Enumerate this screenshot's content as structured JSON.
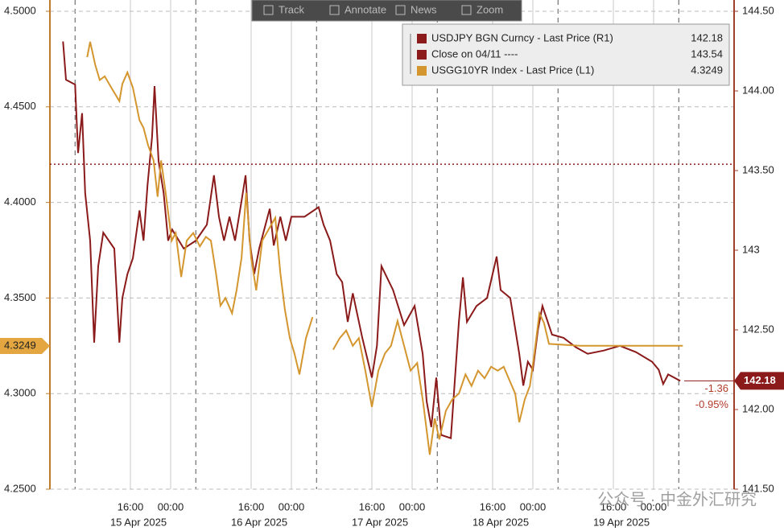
{
  "chart_data": {
    "type": "line",
    "toolbar": [
      "Track",
      "Annotate",
      "News",
      "Zoom"
    ],
    "xlim": [
      0,
      136
    ],
    "xticks": [
      {
        "value": 16,
        "label": "16:00"
      },
      {
        "value": 24,
        "label": "00:00"
      },
      {
        "value": 40,
        "label": "16:00"
      },
      {
        "value": 48,
        "label": "00:00"
      },
      {
        "value": 64,
        "label": "16:00"
      },
      {
        "value": 72,
        "label": "00:00"
      },
      {
        "value": 88,
        "label": "16:00"
      },
      {
        "value": 96,
        "label": "00:00"
      },
      {
        "value": 112,
        "label": "16:00"
      },
      {
        "value": 120,
        "label": "00:00"
      }
    ],
    "x_date_labels": [
      {
        "value": 16,
        "label": "15 Apr 2025"
      },
      {
        "value": 40,
        "label": "16 Apr 2025"
      },
      {
        "value": 64,
        "label": "17 Apr 2025"
      },
      {
        "value": 88,
        "label": "18 Apr 2025"
      },
      {
        "value": 112,
        "label": "19 Apr 2025"
      }
    ],
    "session_lines": [
      5,
      29,
      53,
      77,
      101,
      125
    ],
    "ylim": [
      4.25,
      4.5
    ],
    "yticks": [
      {
        "value": 4.25,
        "label": "4.2500"
      },
      {
        "value": 4.3,
        "label": "4.3000"
      },
      {
        "value": 4.35,
        "label": "4.3500"
      },
      {
        "value": 4.4,
        "label": "4.4000"
      },
      {
        "value": 4.45,
        "label": "4.4500"
      },
      {
        "value": 4.5,
        "label": "4.5000"
      }
    ],
    "y2lim": [
      141.5,
      144.5
    ],
    "y2ticks": [
      {
        "value": 141.5,
        "label": "141.50"
      },
      {
        "value": 142,
        "label": "142.00"
      },
      {
        "value": 142.5,
        "label": "142.50"
      },
      143,
      {
        "value": 143.5,
        "label": "143.50"
      },
      {
        "value": 144,
        "label": "144.00"
      },
      {
        "value": 144.5,
        "label": "144.50"
      }
    ],
    "grid": true,
    "series": [
      {
        "name": "USDJPY BGN Curncy - Last Price (R1)",
        "color": "#8b1a1a",
        "axis": "y2",
        "last": 142.18,
        "x": [
          2.6,
          3.2,
          5.0,
          5.6,
          6.4,
          7.0,
          8.0,
          8.8,
          9.6,
          10.6,
          12.8,
          13.8,
          14.4,
          15.4,
          16.5,
          17.8,
          18.6,
          19.4,
          20.3,
          20.8,
          21.6,
          22.6,
          23.5,
          24.3,
          26.6,
          29.0,
          31.2,
          32.6,
          33.6,
          34.6,
          35.7,
          36.8,
          38.1,
          38.9,
          39.7,
          40.6,
          41.6,
          43.7,
          44.5,
          45.8,
          46.9,
          48.0,
          50.6,
          53.4,
          54.4,
          55.7,
          57.0,
          58.1,
          59.2,
          60.2,
          62.1,
          64.0,
          65.0,
          65.9,
          68.2,
          70.4,
          72.5,
          74.1,
          74.9,
          75.8,
          76.8,
          77.8,
          79.7,
          81.3,
          82.1,
          82.9,
          84.8,
          86.9,
          88.8,
          89.6,
          91.5,
          93.3,
          94.1,
          95.0,
          96.0,
          97.0,
          97.9,
          99.8,
          102.1,
          104.6,
          106.9,
          110.1,
          113.3,
          116.5,
          119.7,
          121.0,
          121.9,
          122.9,
          125.3
        ],
        "values": [
          144.31,
          144.07,
          144.04,
          143.61,
          143.86,
          143.36,
          143.06,
          142.42,
          142.9,
          143.11,
          143.01,
          142.42,
          142.7,
          142.85,
          142.95,
          143.25,
          143.06,
          143.41,
          143.71,
          144.03,
          143.56,
          143.36,
          143.06,
          143.13,
          143.01,
          143.06,
          143.16,
          143.47,
          143.21,
          143.06,
          143.21,
          143.06,
          143.31,
          143.47,
          143.06,
          142.85,
          143.01,
          143.26,
          143.03,
          143.21,
          143.06,
          143.21,
          143.21,
          143.27,
          143.16,
          143.06,
          142.85,
          142.8,
          142.55,
          142.73,
          142.45,
          142.2,
          142.4,
          142.9,
          142.75,
          142.53,
          142.65,
          142.35,
          142.05,
          141.89,
          142.2,
          141.84,
          141.82,
          142.55,
          142.83,
          142.55,
          142.65,
          142.7,
          142.96,
          142.75,
          142.7,
          142.35,
          142.15,
          142.3,
          142.25,
          142.5,
          142.65,
          142.47,
          142.45,
          142.39,
          142.35,
          142.37,
          142.4,
          142.36,
          142.3,
          142.25,
          142.16,
          142.22,
          142.18
        ]
      },
      {
        "name": "Close on 04/11 ----",
        "color": "#8b1a1a",
        "axis": "y2",
        "last": 143.54
      },
      {
        "name": "USGG10YR Index - Last Price (L1)",
        "color": "#d4962e",
        "axis": "y",
        "last": 4.3249,
        "x": [
          7.4,
          8.0,
          9.0,
          9.9,
          10.9,
          12.2,
          13.8,
          14.4,
          15.4,
          16.5,
          17.8,
          18.6,
          19.5,
          20.6,
          21.4,
          22.1,
          23.0,
          24.2,
          25.0,
          26.1,
          27.2,
          28.5,
          29.8,
          31.0,
          32.0,
          33.0,
          33.9,
          34.9,
          36.2,
          37.1,
          38.1,
          39.0,
          40.0,
          41.0,
          42.2,
          43.5,
          44.8,
          45.8,
          46.7,
          47.7,
          48.6,
          49.6,
          50.9,
          52.2,
          54.0,
          56.3,
          57.6,
          58.9,
          60.2,
          61.4,
          62.7,
          64.0,
          65.3,
          66.6,
          67.8,
          69.1,
          70.4,
          71.7,
          73.0,
          74.2,
          75.5,
          76.5,
          77.4,
          78.7,
          80.0,
          81.3,
          82.6,
          83.8,
          85.1,
          86.4,
          87.7,
          89.0,
          90.2,
          91.5,
          92.5,
          93.3,
          94.4,
          95.4,
          96.3,
          97.3,
          98.2,
          99.2,
          105.3,
          125.8
        ],
        "values": [
          4.476,
          4.484,
          4.472,
          4.464,
          4.466,
          4.46,
          4.453,
          4.462,
          4.468,
          4.46,
          4.443,
          4.439,
          4.43,
          4.422,
          4.403,
          4.422,
          4.405,
          4.38,
          4.384,
          4.361,
          4.38,
          4.384,
          4.377,
          4.382,
          4.38,
          4.363,
          4.346,
          4.35,
          4.342,
          4.354,
          4.371,
          4.405,
          4.371,
          4.354,
          4.38,
          4.386,
          4.392,
          4.363,
          4.344,
          4.329,
          4.321,
          4.31,
          4.329,
          4.34,
          null,
          4.323,
          4.329,
          4.333,
          4.325,
          4.329,
          4.312,
          4.293,
          4.312,
          4.321,
          4.325,
          4.338,
          4.325,
          4.312,
          4.316,
          4.295,
          4.268,
          4.287,
          4.276,
          4.291,
          4.297,
          4.3,
          4.31,
          4.304,
          4.312,
          4.308,
          4.314,
          4.312,
          4.314,
          4.306,
          4.3,
          4.285,
          4.297,
          4.304,
          4.321,
          4.342,
          4.337,
          4.326,
          4.325,
          4.325
        ]
      }
    ],
    "annotations": [
      "-1.36",
      "-0.95%"
    ],
    "watermark": "公众号 · 中金外汇研究"
  }
}
